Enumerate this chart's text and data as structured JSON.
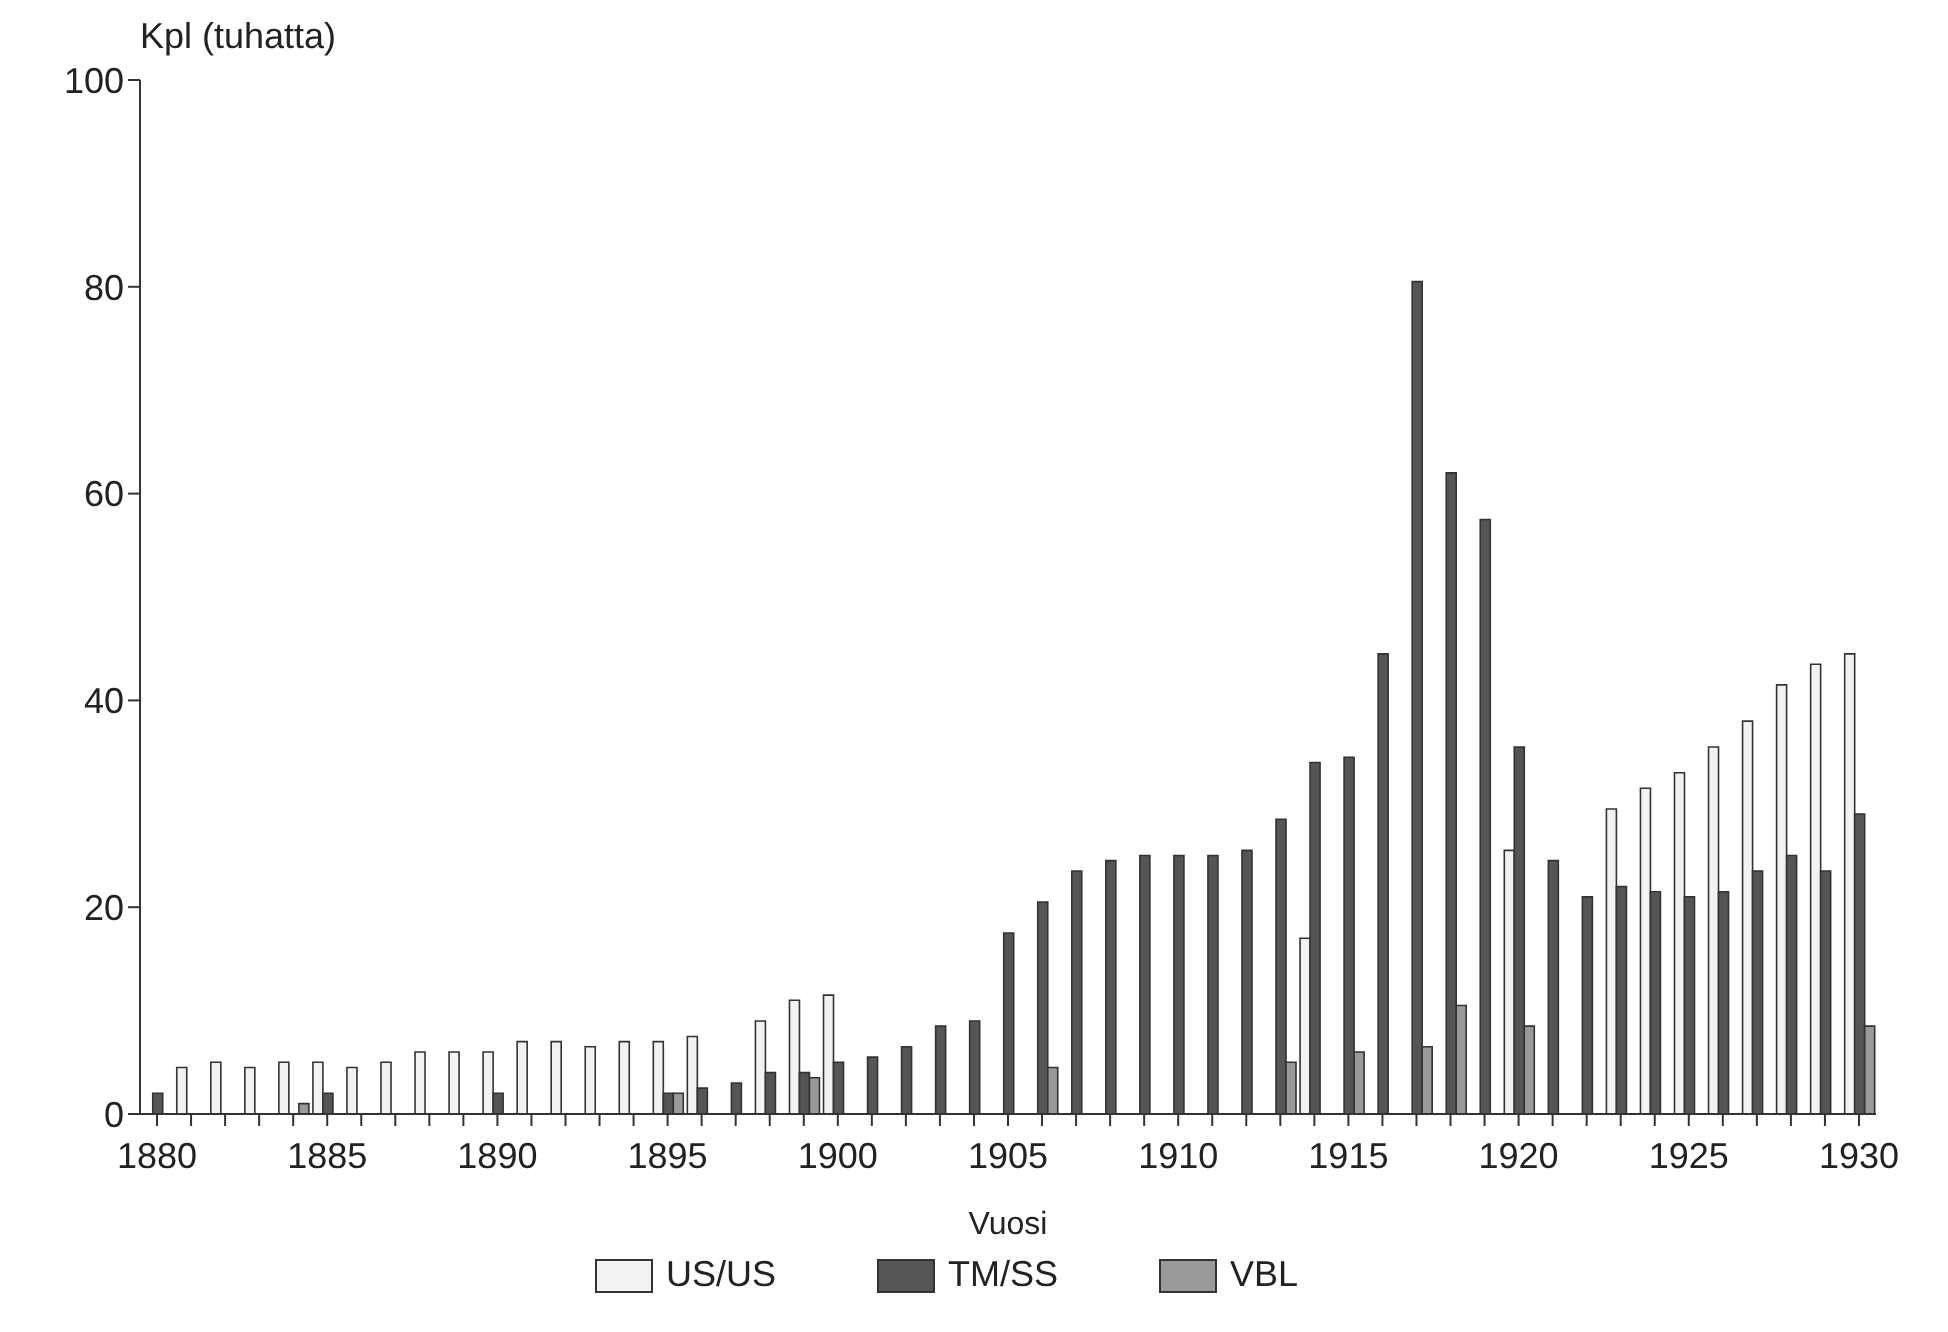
{
  "chart_data": {
    "type": "bar",
    "xlabel": "Vuosi",
    "ylabel": "Kpl (tuhatta)",
    "categories": [
      "1880",
      null,
      null,
      null,
      null,
      "1885",
      null,
      null,
      null,
      null,
      "1890",
      null,
      null,
      null,
      null,
      "1895",
      null,
      null,
      null,
      null,
      "1900",
      null,
      null,
      null,
      null,
      "1905",
      null,
      null,
      null,
      null,
      "1910",
      null,
      null,
      null,
      null,
      "1915",
      null,
      null,
      null,
      null,
      "1920",
      null,
      null,
      null,
      null,
      "1925",
      null,
      null,
      null,
      null,
      "1930"
    ],
    "series": [
      {
        "name": "US/US",
        "color": "#f2f2f2",
        "values": [
          null,
          4.5,
          5,
          4.5,
          5,
          5,
          4.5,
          5,
          6,
          6,
          6,
          7,
          7,
          6.5,
          7,
          7,
          7.5,
          null,
          9,
          11,
          11.5,
          null,
          null,
          null,
          null,
          null,
          null,
          null,
          null,
          null,
          null,
          null,
          null,
          null,
          17,
          null,
          null,
          null,
          null,
          null,
          25.5,
          null,
          null,
          29.5,
          31.5,
          33,
          35.5,
          38,
          41.5,
          43.5,
          44.5
        ]
      },
      {
        "name": "TM/SS",
        "color": "#555555",
        "values": [
          2,
          null,
          null,
          null,
          null,
          2,
          null,
          null,
          null,
          null,
          2,
          null,
          null,
          null,
          null,
          2,
          2.5,
          3,
          4,
          4,
          5,
          5.5,
          6.5,
          8.5,
          9,
          17.5,
          20.5,
          23.5,
          24.5,
          25,
          25,
          25,
          25.5,
          28.5,
          34,
          34.5,
          44.5,
          80.5,
          62,
          57.5,
          35.5,
          24.5,
          21,
          22,
          21.5,
          21,
          21.5,
          23.5,
          25,
          23.5,
          29
        ]
      },
      {
        "name": "VBL",
        "color": "#999999",
        "values": [
          null,
          null,
          null,
          null,
          1,
          null,
          null,
          null,
          null,
          null,
          null,
          null,
          null,
          null,
          null,
          2,
          null,
          null,
          null,
          3.5,
          null,
          null,
          null,
          null,
          null,
          null,
          4.5,
          null,
          null,
          null,
          null,
          null,
          null,
          5,
          null,
          6,
          null,
          6.5,
          10.5,
          null,
          8.5,
          null,
          null,
          null,
          null,
          null,
          null,
          null,
          null,
          null,
          8.5
        ]
      }
    ],
    "ylim": [
      0,
      100
    ],
    "yticks": [
      0,
      20,
      40,
      60,
      80,
      100
    ],
    "legend": "bottom"
  }
}
